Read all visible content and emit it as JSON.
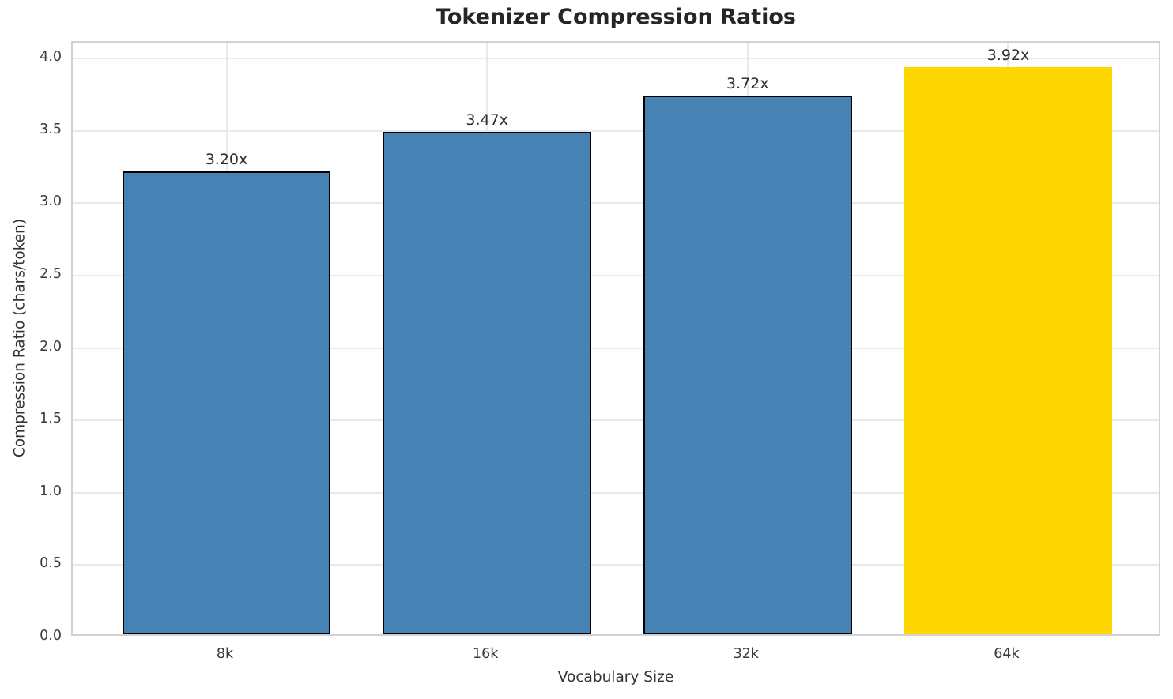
{
  "chart_data": {
    "type": "bar",
    "title": "Tokenizer Compression Ratios",
    "xlabel": "Vocabulary Size",
    "ylabel": "Compression Ratio (chars/token)",
    "categories": [
      "8k",
      "16k",
      "32k",
      "64k"
    ],
    "values": [
      3.2,
      3.47,
      3.72,
      3.92
    ],
    "bar_labels": [
      "3.20x",
      "3.47x",
      "3.72x",
      "3.92x"
    ],
    "bar_colors": [
      "#4682B4",
      "#4682B4",
      "#4682B4",
      "#FFD700"
    ],
    "bar_edge_colors": [
      "#000000",
      "#000000",
      "#000000",
      "none"
    ],
    "ytick_labels": [
      "0.0",
      "0.5",
      "1.0",
      "1.5",
      "2.0",
      "2.5",
      "3.0",
      "3.5",
      "4.0"
    ],
    "yticks": [
      0.0,
      0.5,
      1.0,
      1.5,
      2.0,
      2.5,
      3.0,
      3.5,
      4.0
    ],
    "ylim": [
      0,
      4.11
    ],
    "grid": true,
    "legend": "none",
    "colors": {
      "bar_default": "#4682B4",
      "bar_highlight": "#FFD700",
      "bar_edge": "#000000",
      "grid": "#e9e9e9",
      "spine": "#d2d2d2",
      "title_text": "#262626",
      "tick_text": "#3b3b3b"
    }
  }
}
